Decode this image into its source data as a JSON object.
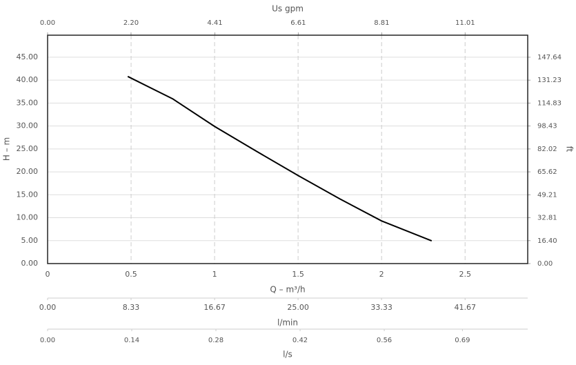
{
  "chart_data": {
    "type": "line",
    "xlabel": "Q – m³/h",
    "ylabel": "H – m",
    "y2label": "ft",
    "x": [
      0.48,
      0.75,
      1.0,
      1.25,
      1.5,
      1.75,
      2.0,
      2.3
    ],
    "values": [
      40.8,
      35.9,
      29.9,
      24.5,
      19.2,
      14.1,
      9.3,
      4.96
    ],
    "color": "#000000",
    "xlim": [
      0,
      2.875
    ],
    "xticks": [
      0,
      0.5,
      1,
      1.5,
      2,
      2.5
    ],
    "ylim": [
      0,
      49.8
    ],
    "yticks": [
      {
        "value": 0,
        "label": "0.00"
      },
      {
        "value": 5,
        "label": "5.00"
      },
      {
        "value": 10,
        "label": "10.00"
      },
      {
        "value": 15,
        "label": "15.00"
      },
      {
        "value": 20,
        "label": "20.00"
      },
      {
        "value": 25,
        "label": "25.00"
      },
      {
        "value": 30,
        "label": "30.00"
      },
      {
        "value": 35,
        "label": "35.00"
      },
      {
        "value": 40,
        "label": "40.00"
      },
      {
        "value": 45,
        "label": "45.00"
      }
    ],
    "y2lim": [
      0,
      163.4
    ],
    "y2ticks": [
      {
        "value": 0,
        "label": "0.00"
      },
      {
        "value": 16.4,
        "label": "16.40"
      },
      {
        "value": 32.81,
        "label": "32.81"
      },
      {
        "value": 49.21,
        "label": "49.21"
      },
      {
        "value": 65.62,
        "label": "65.62"
      },
      {
        "value": 82.02,
        "label": "82.02"
      },
      {
        "value": 98.43,
        "label": "98.43"
      },
      {
        "value": 114.83,
        "label": "114.83"
      },
      {
        "value": 131.23,
        "label": "131.23"
      },
      {
        "value": 147.64,
        "label": "147.64"
      }
    ],
    "grid": true,
    "top_axis": {
      "label": "Us gpm",
      "xlim": [
        0,
        12.66
      ],
      "xticks": [
        {
          "value": 0,
          "label": "0.00"
        },
        {
          "value": 2.2,
          "label": "2.20"
        },
        {
          "value": 4.41,
          "label": "4.41"
        },
        {
          "value": 6.61,
          "label": "6.61"
        },
        {
          "value": 8.81,
          "label": "8.81"
        },
        {
          "value": 11.01,
          "label": "11.01"
        }
      ]
    },
    "bottom_axes": [
      {
        "label": "l/min",
        "xlim": [
          0,
          47.92
        ],
        "xticks": [
          {
            "value": 0,
            "label": "0.00"
          },
          {
            "value": 8.33,
            "label": "8.33"
          },
          {
            "value": 16.67,
            "label": "16.67"
          },
          {
            "value": 25,
            "label": "25.00"
          },
          {
            "value": 33.33,
            "label": "33.33"
          },
          {
            "value": 41.67,
            "label": "41.67"
          }
        ]
      },
      {
        "label": "l/s",
        "xlim": [
          0,
          0.7986
        ],
        "xticks": [
          {
            "value": 0,
            "label": "0.00"
          },
          {
            "value": 0.14,
            "label": "0.14"
          },
          {
            "value": 0.28,
            "label": "0.28"
          },
          {
            "value": 0.42,
            "label": "0.42"
          },
          {
            "value": 0.56,
            "label": "0.56"
          },
          {
            "value": 0.69,
            "label": "0.69"
          }
        ]
      }
    ]
  }
}
